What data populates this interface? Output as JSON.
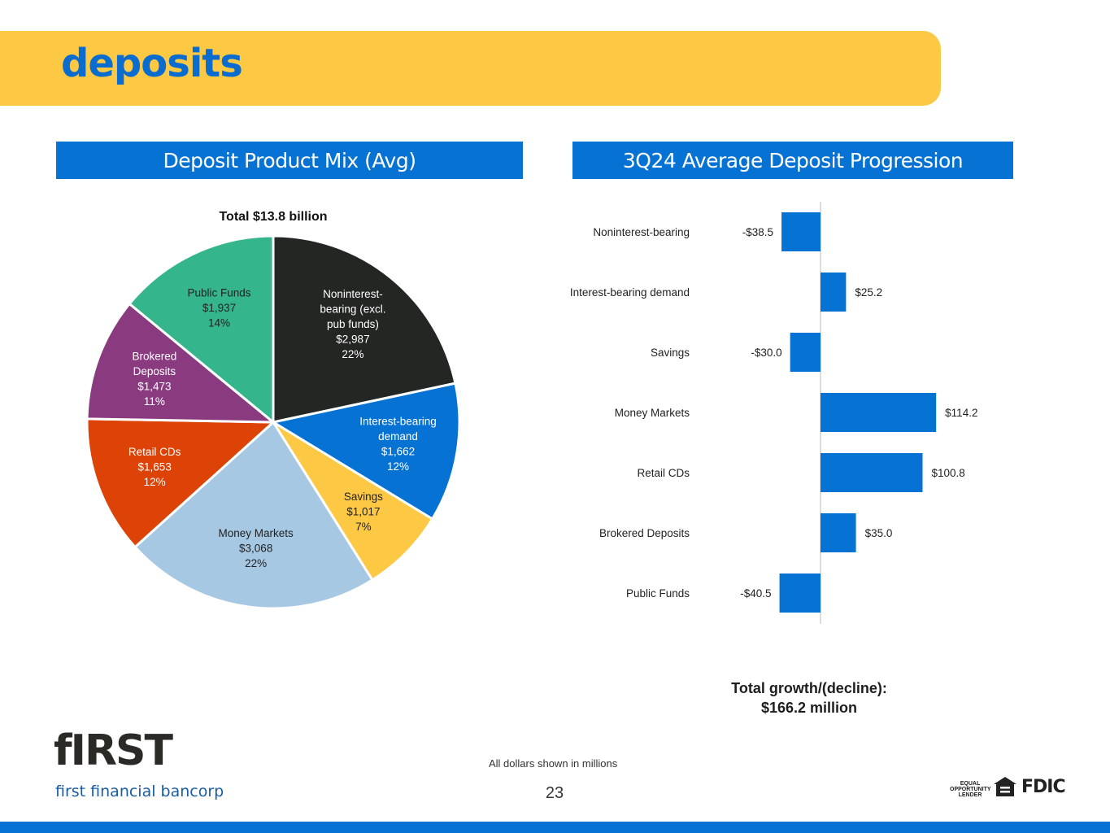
{
  "header": {
    "title": "deposits"
  },
  "left_panel": {
    "title": "Deposit Product Mix (Avg)"
  },
  "right_panel": {
    "title": "3Q24 Average Deposit Progression"
  },
  "chart_data": [
    {
      "type": "pie",
      "title": "Total $13.8 billion",
      "slices": [
        {
          "label": [
            "Noninterest-",
            "bearing (excl.",
            "pub funds)"
          ],
          "amount": "$2,987",
          "pct": "22%",
          "value": 2987,
          "color": "#232623",
          "text_color": "#ffffff"
        },
        {
          "label": [
            "Interest-bearing",
            "demand"
          ],
          "amount": "$1,662",
          "pct": "12%",
          "value": 1662,
          "color": "#0673d4",
          "text_color": "#ffffff"
        },
        {
          "label": [
            "Savings"
          ],
          "amount": "$1,017",
          "pct": "7%",
          "value": 1017,
          "color": "#fdc945",
          "text_color": "#222222"
        },
        {
          "label": [
            "Money Markets"
          ],
          "amount": "$3,068",
          "pct": "22%",
          "value": 3068,
          "color": "#a6c8e3",
          "text_color": "#222222"
        },
        {
          "label": [
            "Retail CDs"
          ],
          "amount": "$1,653",
          "pct": "12%",
          "value": 1653,
          "color": "#dd4307",
          "text_color": "#ffffff"
        },
        {
          "label": [
            "Brokered",
            "Deposits"
          ],
          "amount": "$1,473",
          "pct": "11%",
          "value": 1473,
          "color": "#8a3b80",
          "text_color": "#ffffff"
        },
        {
          "label": [
            "Public Funds"
          ],
          "amount": "$1,937",
          "pct": "14%",
          "value": 1937,
          "color": "#35b58c",
          "text_color": "#222222"
        }
      ]
    },
    {
      "type": "bar",
      "orientation": "horizontal",
      "categories": [
        "Noninterest-bearing",
        "Interest-bearing demand",
        "Savings",
        "Money Markets",
        "Retail CDs",
        "Brokered Deposits",
        "Public Funds"
      ],
      "values": [
        -38.5,
        25.2,
        -30.0,
        114.2,
        100.8,
        35.0,
        -40.5
      ],
      "labels": [
        "-$38.5",
        "$25.2",
        "-$30.0",
        "$114.2",
        "$100.8",
        "$35.0",
        "-$40.5"
      ],
      "color": "#0673d4"
    }
  ],
  "summary": {
    "line1": "Total growth/(decline):",
    "line2": "$166.2 million"
  },
  "footer": {
    "note": "All dollars shown in millions",
    "page_number": "23",
    "logo_word": "fIRST",
    "logo_sub": "first financial bancorp",
    "equal_lender": "EQUAL OPPORTUNITY LENDER",
    "fdic": "FDIC"
  }
}
